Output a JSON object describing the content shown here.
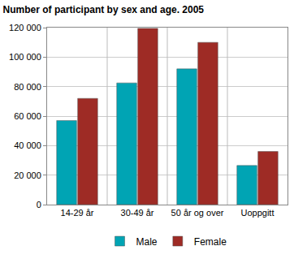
{
  "chart_data": {
    "type": "bar",
    "title": "Number of participant by sex and age. 2005",
    "categories": [
      "14-29 år",
      "30-49 år",
      "50 år og over",
      "Uoppgitt"
    ],
    "series": [
      {
        "name": "Male",
        "color": "#00a4b4",
        "values": [
          57000,
          82500,
          92000,
          26500
        ]
      },
      {
        "name": "Female",
        "color": "#9e2b25",
        "values": [
          72000,
          119500,
          110000,
          36000
        ]
      }
    ],
    "ylim": [
      0,
      120000
    ],
    "yticks": [
      0,
      {
        "value": 20000,
        "label": "20 000"
      },
      {
        "value": 40000,
        "label": "40 000"
      },
      {
        "value": 60000,
        "label": "60 000"
      },
      {
        "value": 80000,
        "label": "80 000"
      },
      {
        "value": 100000,
        "label": "100 000"
      },
      {
        "value": 120000,
        "label": "120 000"
      }
    ],
    "grid": true,
    "legend": "bottom"
  }
}
